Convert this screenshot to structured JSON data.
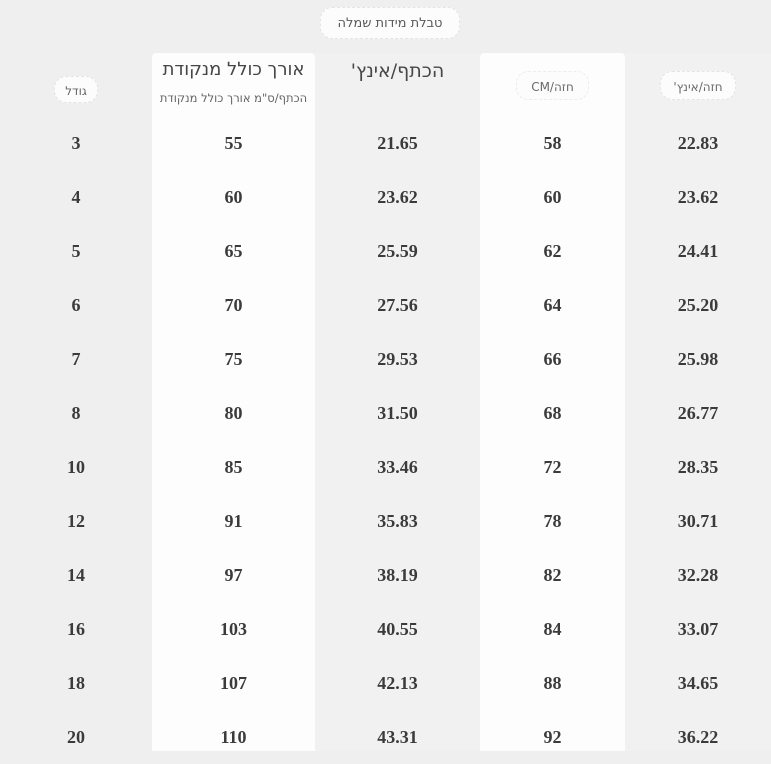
{
  "title": "טבלת מידות שמלה",
  "header": {
    "size_label": "גודל",
    "length_label_main": "אורך כולל מנקודת",
    "length_label_sub": "הכתף/ס\"מ אורך כולל מנקודת",
    "shoulder_inch_label": "הכתף/אינץ'",
    "bust_cm_label": "חזה/CM",
    "bust_inch_label": "חזה/אינץ'"
  },
  "table": {
    "columns": [
      "גודל",
      "אורך כולל מנקודת הכתף/ס\"מ",
      "הכתף/אינץ'",
      "חזה/CM",
      "חזה/אינץ'"
    ],
    "rows": [
      [
        "3",
        "55",
        "21.65",
        "58",
        "22.83"
      ],
      [
        "4",
        "60",
        "23.62",
        "60",
        "23.62"
      ],
      [
        "5",
        "65",
        "25.59",
        "62",
        "24.41"
      ],
      [
        "6",
        "70",
        "27.56",
        "64",
        "25.20"
      ],
      [
        "7",
        "75",
        "29.53",
        "66",
        "25.98"
      ],
      [
        "8",
        "80",
        "31.50",
        "68",
        "26.77"
      ],
      [
        "10",
        "85",
        "33.46",
        "72",
        "28.35"
      ],
      [
        "12",
        "91",
        "35.83",
        "78",
        "30.71"
      ],
      [
        "14",
        "97",
        "38.19",
        "82",
        "32.28"
      ],
      [
        "16",
        "103",
        "40.55",
        "84",
        "33.07"
      ],
      [
        "18",
        "107",
        "42.13",
        "88",
        "34.65"
      ],
      [
        "20",
        "110",
        "43.31",
        "92",
        "36.22"
      ]
    ]
  },
  "colors": {
    "page_background": "#efeff0",
    "card_background": "#fdfdfe",
    "number_text": "#3b3b3b",
    "header_text": "#474747",
    "muted_text": "#696969"
  }
}
